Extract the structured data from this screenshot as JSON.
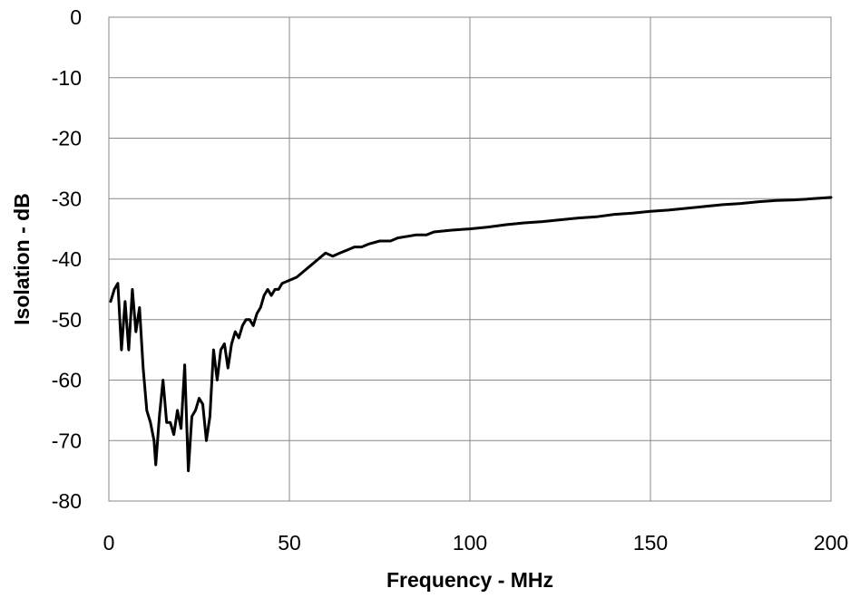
{
  "chart_data": {
    "type": "line",
    "title": "",
    "xlabel": "Frequency - MHz",
    "ylabel": "Isolation - dB",
    "xlim": [
      0,
      200
    ],
    "ylim": [
      -80,
      0
    ],
    "xticks": [
      0,
      50,
      100,
      150,
      200
    ],
    "yticks": [
      0,
      -10,
      -20,
      -30,
      -40,
      -50,
      -60,
      -70,
      -80
    ],
    "grid": true,
    "legend": "none",
    "line_color": "#000000",
    "series": [
      {
        "points": [
          [
            0.5,
            -47
          ],
          [
            1.5,
            -45
          ],
          [
            2.5,
            -44
          ],
          [
            3.5,
            -55
          ],
          [
            4.5,
            -47
          ],
          [
            5.5,
            -55
          ],
          [
            6.5,
            -45
          ],
          [
            7.5,
            -52
          ],
          [
            8.5,
            -48
          ],
          [
            9.5,
            -58
          ],
          [
            10.5,
            -65
          ],
          [
            11.5,
            -67
          ],
          [
            12.5,
            -70
          ],
          [
            13,
            -74
          ],
          [
            14,
            -66
          ],
          [
            15,
            -60
          ],
          [
            16,
            -67
          ],
          [
            17,
            -67
          ],
          [
            18,
            -69
          ],
          [
            19,
            -65
          ],
          [
            20,
            -68
          ],
          [
            21,
            -57.5
          ],
          [
            22,
            -75
          ],
          [
            23,
            -66
          ],
          [
            24,
            -65
          ],
          [
            25,
            -63
          ],
          [
            26,
            -64
          ],
          [
            27,
            -70
          ],
          [
            28,
            -66
          ],
          [
            29,
            -55
          ],
          [
            30,
            -60
          ],
          [
            31,
            -55
          ],
          [
            32,
            -54
          ],
          [
            33,
            -58
          ],
          [
            34,
            -54
          ],
          [
            35,
            -52
          ],
          [
            36,
            -53
          ],
          [
            37,
            -51
          ],
          [
            38,
            -50
          ],
          [
            39,
            -50
          ],
          [
            40,
            -51
          ],
          [
            41,
            -49
          ],
          [
            42,
            -48
          ],
          [
            43,
            -46
          ],
          [
            44,
            -45
          ],
          [
            45,
            -46
          ],
          [
            46,
            -45
          ],
          [
            47,
            -45
          ],
          [
            48,
            -44
          ],
          [
            50,
            -43.5
          ],
          [
            52,
            -43
          ],
          [
            54,
            -42
          ],
          [
            56,
            -41
          ],
          [
            58,
            -40
          ],
          [
            60,
            -39
          ],
          [
            62,
            -39.5
          ],
          [
            64,
            -39
          ],
          [
            66,
            -38.5
          ],
          [
            68,
            -38
          ],
          [
            70,
            -38
          ],
          [
            72,
            -37.5
          ],
          [
            75,
            -37
          ],
          [
            78,
            -37
          ],
          [
            80,
            -36.5
          ],
          [
            85,
            -36
          ],
          [
            88,
            -36
          ],
          [
            90,
            -35.5
          ],
          [
            95,
            -35.2
          ],
          [
            100,
            -35
          ],
          [
            105,
            -34.7
          ],
          [
            110,
            -34.3
          ],
          [
            115,
            -34
          ],
          [
            120,
            -33.8
          ],
          [
            125,
            -33.5
          ],
          [
            130,
            -33.2
          ],
          [
            135,
            -33
          ],
          [
            140,
            -32.6
          ],
          [
            145,
            -32.4
          ],
          [
            150,
            -32.1
          ],
          [
            155,
            -31.9
          ],
          [
            160,
            -31.6
          ],
          [
            165,
            -31.3
          ],
          [
            170,
            -31
          ],
          [
            175,
            -30.8
          ],
          [
            180,
            -30.5
          ],
          [
            185,
            -30.3
          ],
          [
            190,
            -30.2
          ],
          [
            195,
            -30
          ],
          [
            200,
            -29.8
          ]
        ]
      }
    ]
  }
}
